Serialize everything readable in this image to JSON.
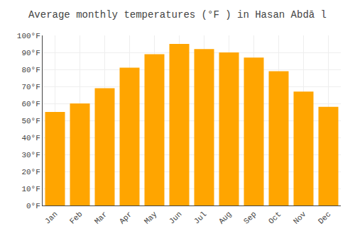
{
  "chart_data": {
    "type": "bar",
    "title": "Average monthly temperatures (°F ) in Hasan Abdā l",
    "categories": [
      "Jan",
      "Feb",
      "Mar",
      "Apr",
      "May",
      "Jun",
      "Jul",
      "Aug",
      "Sep",
      "Oct",
      "Nov",
      "Dec"
    ],
    "values": [
      55,
      60,
      69,
      81,
      89,
      95,
      92,
      90,
      87,
      79,
      67,
      58
    ],
    "color": "#FFA500",
    "ylim": [
      0,
      100
    ],
    "yticks": [
      {
        "value": 0,
        "label": "0°F"
      },
      {
        "value": 10,
        "label": "10°F"
      },
      {
        "value": 20,
        "label": "20°F"
      },
      {
        "value": 30,
        "label": "30°F"
      },
      {
        "value": 40,
        "label": "40°F"
      },
      {
        "value": 50,
        "label": "50°F"
      },
      {
        "value": 60,
        "label": "60°F"
      },
      {
        "value": 70,
        "label": "70°F"
      },
      {
        "value": 80,
        "label": "80°F"
      },
      {
        "value": 90,
        "label": "90°F"
      },
      {
        "value": 100,
        "label": "100°F"
      }
    ],
    "grid": true
  }
}
